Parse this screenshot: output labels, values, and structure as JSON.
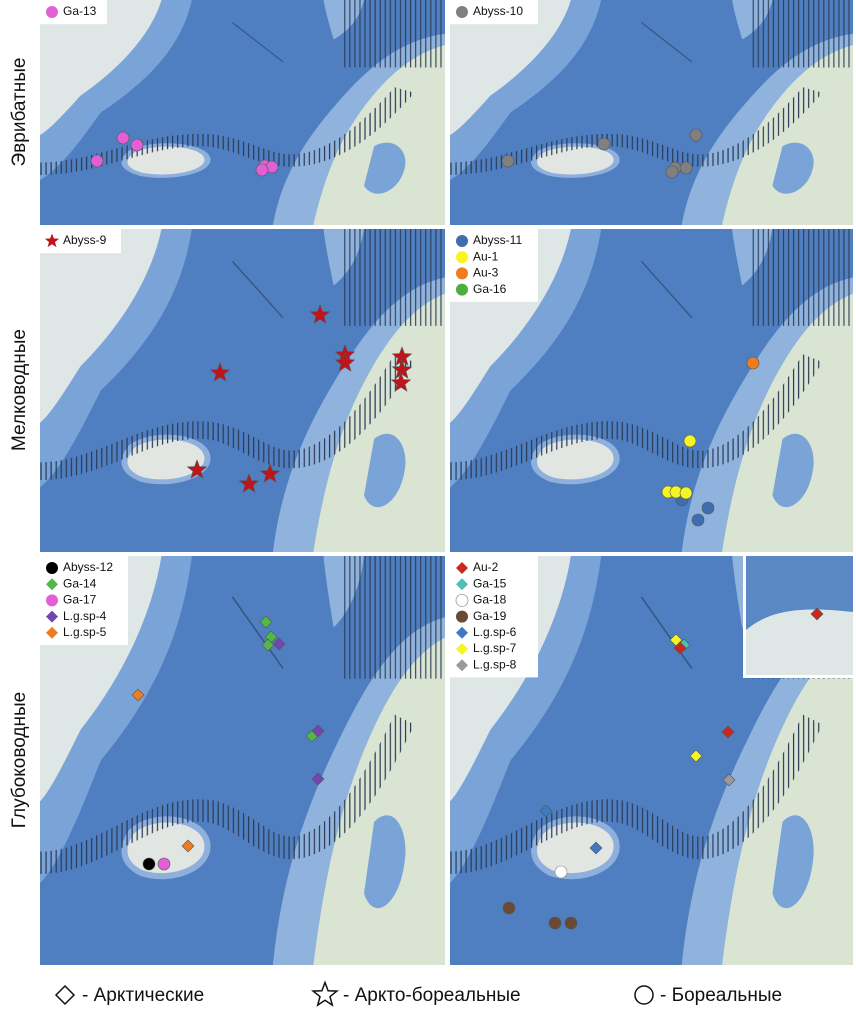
{
  "rows": [
    {
      "label": "Эврибатные",
      "panels": [
        {
          "legend": [
            {
              "name": "Ga-13",
              "color": "#e35fd6",
              "shape": "circle"
            }
          ]
        },
        {
          "legend": [
            {
              "name": "Abyss-10",
              "color": "#808080",
              "shape": "circle"
            }
          ]
        }
      ]
    },
    {
      "label": "Мелководные",
      "panels": [
        {
          "legend": [
            {
              "name": "Abyss-9",
              "color": "#c0141c",
              "shape": "star"
            }
          ]
        },
        {
          "legend": [
            {
              "name": "Abyss-11",
              "color": "#3f6db0",
              "shape": "circle"
            },
            {
              "name": "Au-1",
              "color": "#f5f522",
              "shape": "circle"
            },
            {
              "name": "Au-3",
              "color": "#ee7d22",
              "shape": "circle"
            },
            {
              "name": "Ga-16",
              "color": "#4caf3f",
              "shape": "circle"
            }
          ]
        }
      ]
    },
    {
      "label": "Глубоководные",
      "panels": [
        {
          "legend": [
            {
              "name": "Abyss-12",
              "color": "#000000",
              "shape": "circle"
            },
            {
              "name": "Ga-14",
              "color": "#52b948",
              "shape": "diamond"
            },
            {
              "name": "Ga-17",
              "color": "#e35fd6",
              "shape": "circle"
            },
            {
              "name": "L.g.sp-4",
              "color": "#7445b0",
              "shape": "diamond"
            },
            {
              "name": "L.g.sp-5",
              "color": "#ee7d22",
              "shape": "diamond"
            }
          ]
        },
        {
          "legend": [
            {
              "name": "Au-2",
              "color": "#c8281e",
              "shape": "diamond"
            },
            {
              "name": "Ga-15",
              "color": "#4fc0b4",
              "shape": "diamond"
            },
            {
              "name": "Ga-18",
              "color": "#ffffff",
              "shape": "circle"
            },
            {
              "name": "Ga-19",
              "color": "#6b4a35",
              "shape": "circle"
            },
            {
              "name": "L.g.sp-6",
              "color": "#3f7ac0",
              "shape": "diamond"
            },
            {
              "name": "L.g.sp-7",
              "color": "#f5f522",
              "shape": "diamond"
            },
            {
              "name": "L.g.sp-8",
              "color": "#9a9a9a",
              "shape": "diamond"
            }
          ]
        }
      ]
    }
  ],
  "footer": [
    {
      "shape": "diamond",
      "text": "- Арктические"
    },
    {
      "shape": "star",
      "text": "- Аркто-бореальные"
    },
    {
      "shape": "circle",
      "text": "- Бореальные"
    }
  ]
}
